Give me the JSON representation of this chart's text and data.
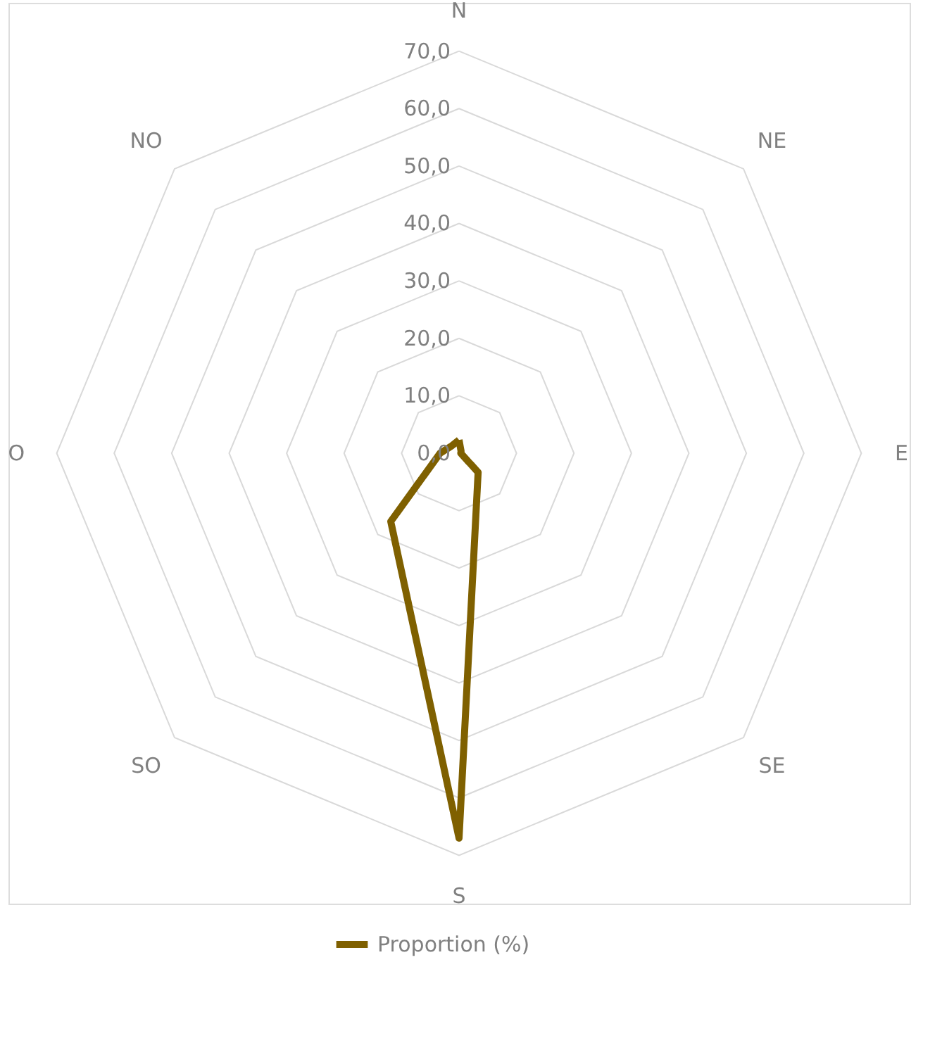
{
  "chart_data": {
    "type": "radar",
    "categories": [
      "N",
      "NE",
      "E",
      "SE",
      "S",
      "SO",
      "O",
      "NO"
    ],
    "series": [
      {
        "name": "Proportion (%)",
        "color": "#7f6000",
        "values": [
          2.3,
          0.5,
          0.3,
          4.7,
          67.0,
          16.8,
          3.3,
          1.8
        ]
      }
    ],
    "ylim": [
      0,
      70
    ],
    "yticks": [
      {
        "value": 0,
        "label": "0,0"
      },
      {
        "value": 10,
        "label": "10,0"
      },
      {
        "value": 20,
        "label": "20,0"
      },
      {
        "value": 30,
        "label": "30,0"
      },
      {
        "value": 40,
        "label": "40,0"
      },
      {
        "value": 50,
        "label": "50,0"
      },
      {
        "value": 60,
        "label": "60,0"
      },
      {
        "value": 70,
        "label": "70,0"
      }
    ],
    "grid": true,
    "legend": "bottom",
    "marker": "none",
    "line_style": "solid"
  }
}
